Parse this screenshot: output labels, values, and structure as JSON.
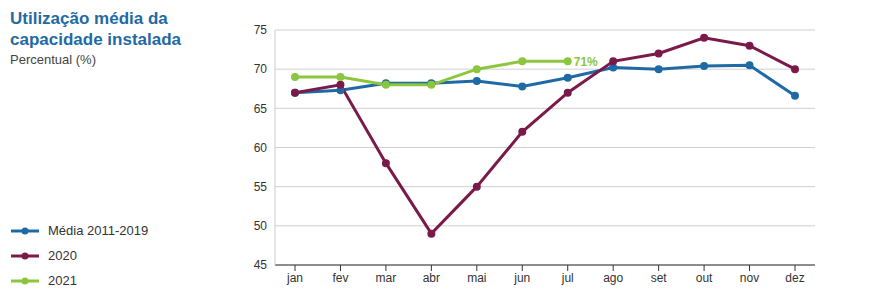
{
  "chart_data": {
    "type": "line",
    "title": "Utilização média da capacidade instalada",
    "subtitle": "Percentual (%)",
    "categories": [
      "jan",
      "fev",
      "mar",
      "abr",
      "mai",
      "jun",
      "jul",
      "ago",
      "set",
      "out",
      "nov",
      "dez"
    ],
    "series": [
      {
        "name": "Média 2011-2019",
        "color": "#1f6aa5",
        "marker": "circle",
        "values": [
          67,
          67.3,
          68.2,
          68.2,
          68.5,
          67.8,
          68.9,
          70.2,
          70,
          70.4,
          70.5,
          66.6
        ]
      },
      {
        "name": "2020",
        "color": "#7a1a4a",
        "marker": "circle",
        "values": [
          67,
          68,
          58,
          49,
          55,
          62,
          67,
          71,
          72,
          74,
          73,
          70
        ]
      },
      {
        "name": "2021",
        "color": "#8cc63f",
        "marker": "circle",
        "values": [
          69,
          69,
          68,
          68,
          70,
          71,
          71,
          null,
          null,
          null,
          null,
          null
        ]
      }
    ],
    "annotations": [
      {
        "text": "71%",
        "x": "jul",
        "y": 71,
        "color": "#8cc63f"
      }
    ],
    "ylim": [
      45,
      75
    ],
    "yticks": [
      45,
      50,
      55,
      60,
      65,
      70,
      75
    ],
    "grid": true,
    "legend": "left"
  }
}
